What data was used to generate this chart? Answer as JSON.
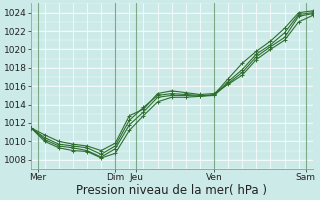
{
  "title": "",
  "xlabel": "Pression niveau de la mer( hPa )",
  "bg_color": "#cceae7",
  "grid_major_color": "#ffffff",
  "grid_minor_color": "#e8f5f3",
  "line_color": "#2d6e2d",
  "ylim": [
    1007,
    1025
  ],
  "yticks": [
    1008,
    1010,
    1012,
    1014,
    1016,
    1018,
    1020,
    1022,
    1024
  ],
  "xlim": [
    0,
    20
  ],
  "xtick_labels": [
    "Mer",
    "Dim",
    "Jeu",
    "Ven",
    "Sam"
  ],
  "xtick_pos": [
    0.5,
    6,
    7.5,
    13,
    19.5
  ],
  "vline_pos": [
    0.5,
    6.0,
    7.5,
    13.0,
    19.5
  ],
  "lines": [
    [
      1011.5,
      1010.2,
      1009.5,
      1009.3,
      1009.0,
      1008.3,
      1009.2,
      1011.8,
      1013.2,
      1014.8,
      1015.0,
      1015.0,
      1014.9,
      1015.0,
      1016.5,
      1017.8,
      1019.5,
      1020.5,
      1021.8,
      1023.8,
      1024.0
    ],
    [
      1011.5,
      1010.0,
      1009.3,
      1009.0,
      1008.9,
      1008.2,
      1008.7,
      1011.2,
      1012.8,
      1014.3,
      1014.8,
      1014.8,
      1014.9,
      1015.1,
      1016.8,
      1018.5,
      1019.8,
      1020.9,
      1022.3,
      1024.0,
      1024.2
    ],
    [
      1011.5,
      1010.4,
      1009.7,
      1009.5,
      1009.3,
      1008.6,
      1009.5,
      1012.3,
      1013.7,
      1015.0,
      1015.2,
      1015.1,
      1015.0,
      1015.0,
      1016.3,
      1017.5,
      1019.2,
      1020.3,
      1021.3,
      1023.6,
      1023.9
    ],
    [
      1011.5,
      1010.7,
      1010.0,
      1009.7,
      1009.5,
      1009.0,
      1009.8,
      1012.8,
      1013.5,
      1015.2,
      1015.5,
      1015.3,
      1015.1,
      1015.2,
      1016.2,
      1017.2,
      1018.9,
      1020.0,
      1021.0,
      1023.0,
      1023.7
    ]
  ],
  "lines_with_markers": [
    0,
    1,
    2,
    3
  ],
  "xlabel_fontsize": 8.5,
  "ytick_fontsize": 6.5,
  "xtick_fontsize": 6.5,
  "figsize": [
    3.2,
    2.0
  ],
  "dpi": 100
}
